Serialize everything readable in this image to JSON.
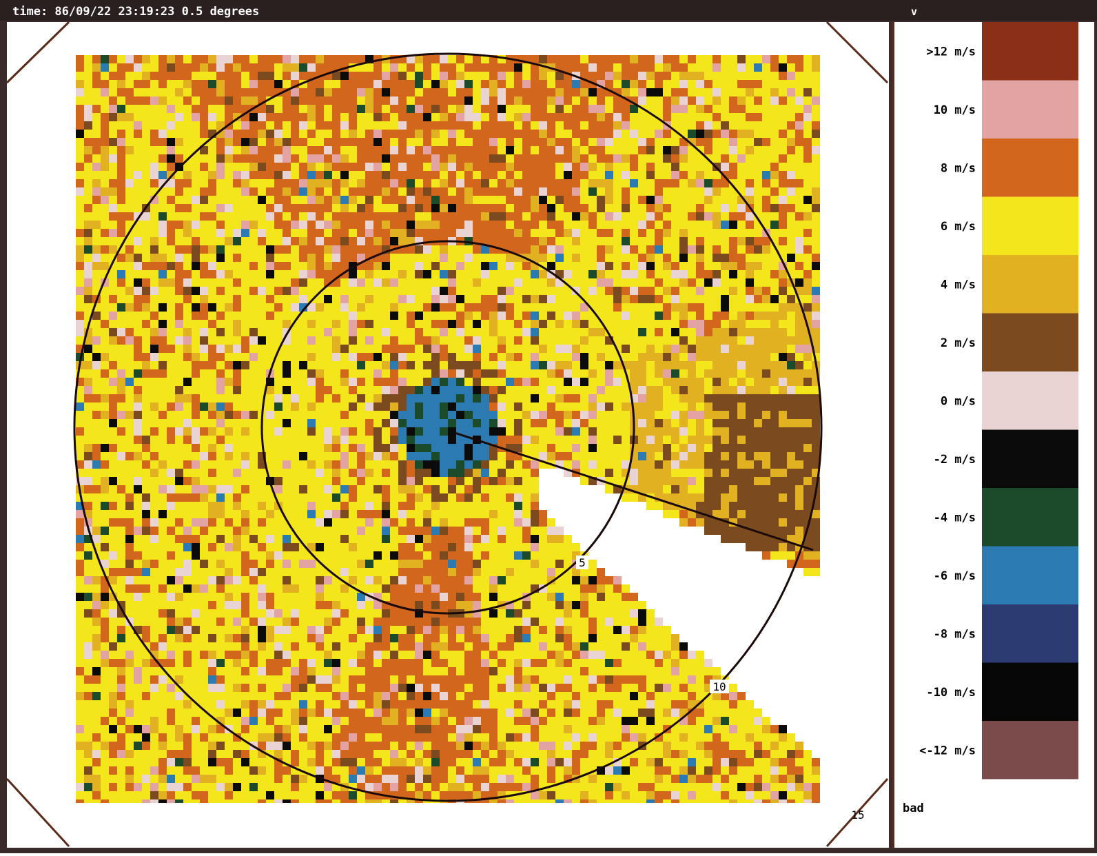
{
  "header": {
    "title": "time: 86/09/22 23:19:23 0.5 degrees",
    "field": "v"
  },
  "display": {
    "range_labels": [
      "5",
      "10",
      "15"
    ]
  },
  "legend": {
    "items": [
      {
        "label": ">12 m/s",
        "color": "#8c2f18"
      },
      {
        "label": "10 m/s",
        "color": "#e3a3a3"
      },
      {
        "label": "8 m/s",
        "color": "#d2661d"
      },
      {
        "label": "6 m/s",
        "color": "#f3e61b"
      },
      {
        "label": "4 m/s",
        "color": "#e2b122"
      },
      {
        "label": "2 m/s",
        "color": "#7b4b1f"
      },
      {
        "label": "0 m/s",
        "color": "#ead3d3"
      },
      {
        "label": "-2 m/s",
        "color": "#0b0b0b"
      },
      {
        "label": "-4 m/s",
        "color": "#1b4b2b"
      },
      {
        "label": "-6 m/s",
        "color": "#2b7bb2"
      },
      {
        "label": "-8 m/s",
        "color": "#2b3b72"
      },
      {
        "label": "-10 m/s",
        "color": "#060606"
      },
      {
        "label": "<-12 m/s",
        "color": "#7b4b4b"
      }
    ],
    "bad_label": "bad"
  }
}
